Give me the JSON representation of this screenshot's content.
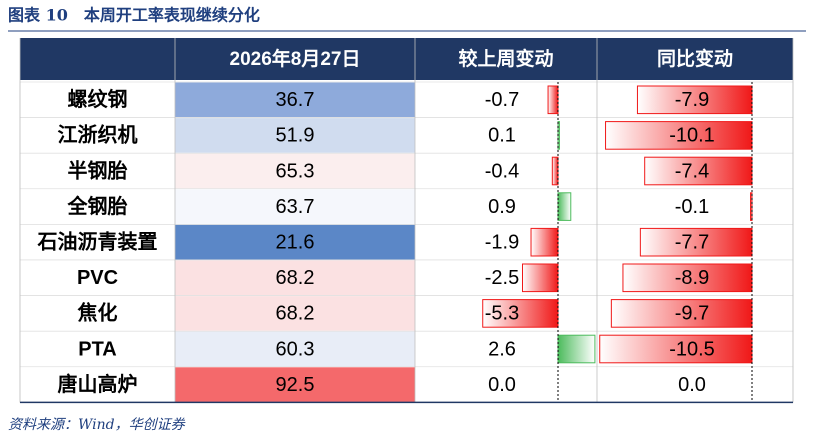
{
  "title": "图表 10　本周开工率表现继续分化",
  "source": "资料来源：Wind，华创证券",
  "table": {
    "header": [
      "2026年8月27日",
      "较上周变动",
      "同比变动"
    ],
    "rows": [
      [
        "螺纹钢",
        "36.7",
        "-0.7",
        "-7.9"
      ],
      [
        "江浙织机",
        "51.9",
        "0.1",
        "-10.1"
      ],
      [
        "半钢胎",
        "65.3",
        "-0.4",
        "-7.4"
      ],
      [
        "全钢胎",
        "63.7",
        "0.9",
        "-0.1"
      ],
      [
        "石油沥青装置",
        "21.6",
        "-1.9",
        "-7.7"
      ],
      [
        "PVC",
        "68.2",
        "-2.5",
        "-8.9"
      ],
      [
        "焦化",
        "68.2",
        "-5.3",
        "-9.7"
      ],
      [
        "PTA",
        "60.3",
        "2.6",
        "-10.5"
      ],
      [
        "唐山高炉",
        "92.5",
        "0.0",
        "0.0"
      ]
    ],
    "value_colors": [
      "#8eaadb",
      "#d0dcef",
      "#fbeeee",
      "#f5f7fc",
      "#5b87c7",
      "#fbe1e2",
      "#fbe1e2",
      "#e8edf7",
      "#f4696b"
    ]
  }
}
